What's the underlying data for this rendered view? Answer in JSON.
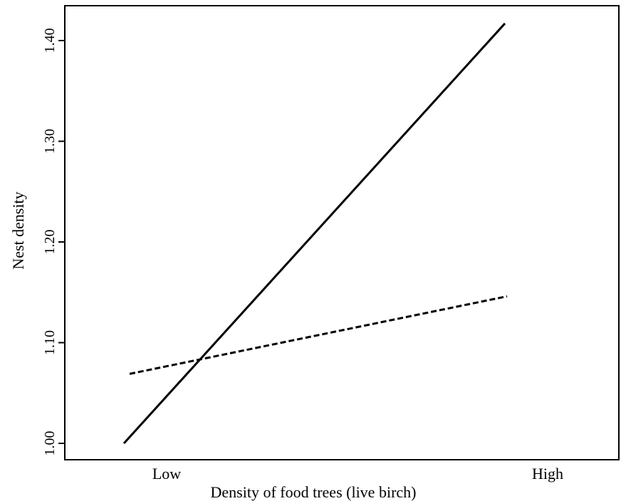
{
  "chart_data": {
    "type": "line",
    "title": "",
    "xlabel": "Density of food trees (live birch)",
    "ylabel": "Nest density",
    "x_categories": [
      "Low",
      "High"
    ],
    "yticks": [
      "1.00",
      "1.10",
      "1.20",
      "1.30",
      "1.40"
    ],
    "ylim": [
      1.0,
      1.4
    ],
    "series": [
      {
        "style": "solid",
        "x": [
          "Low",
          "High"
        ],
        "values": [
          1.0,
          1.417
        ]
      },
      {
        "style": "dashed",
        "x": [
          "Low",
          "High"
        ],
        "values": [
          1.069,
          1.146
        ]
      }
    ]
  }
}
